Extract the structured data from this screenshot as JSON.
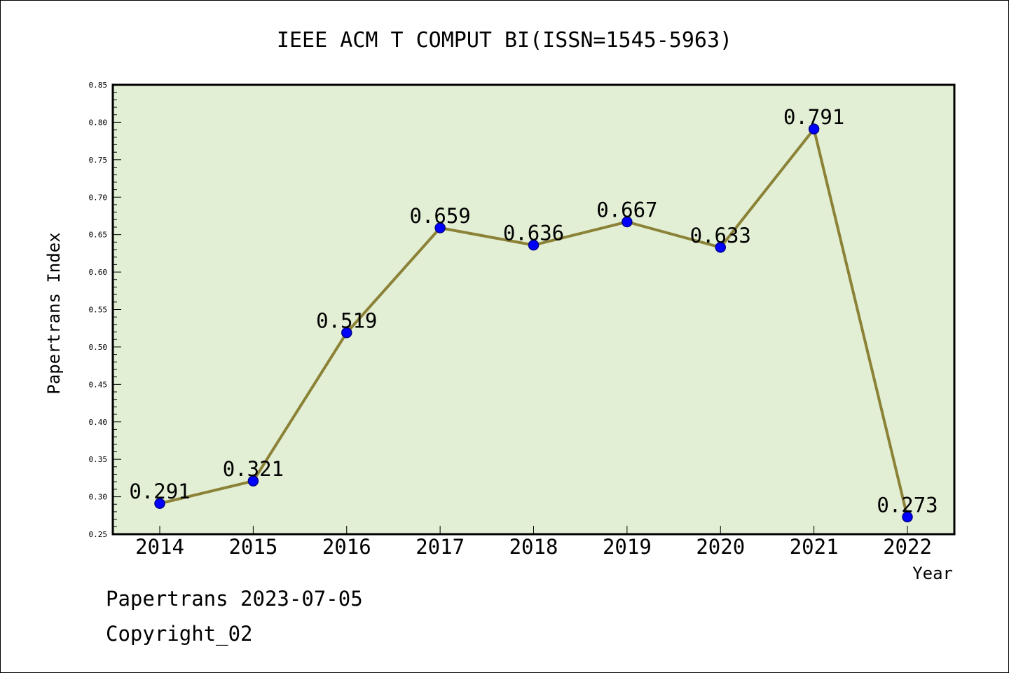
{
  "chart_data": {
    "type": "line",
    "title": "IEEE ACM T COMPUT BI(ISSN=1545-5963)",
    "xlabel": "Year",
    "ylabel": "Papertrans Index",
    "categories": [
      "2014",
      "2015",
      "2016",
      "2017",
      "2018",
      "2019",
      "2020",
      "2021",
      "2022"
    ],
    "values": [
      0.291,
      0.321,
      0.519,
      0.659,
      0.636,
      0.667,
      0.633,
      0.791,
      0.273
    ],
    "data_labels": [
      "0.291",
      "0.321",
      "0.519",
      "0.659",
      "0.636",
      "0.667",
      "0.633",
      "0.791",
      "0.273"
    ],
    "ylim": [
      0.25,
      0.85
    ],
    "yticks": [
      "0.25",
      "0.30",
      "0.35",
      "0.40",
      "0.45",
      "0.50",
      "0.55",
      "0.60",
      "0.65",
      "0.70",
      "0.75",
      "0.80",
      "0.85"
    ],
    "grid": false,
    "colors": {
      "plot_background": "#e2efd4",
      "line": "#8b8237",
      "marker": "#0000ff",
      "marker_edge": "#00008b",
      "axes": "#000000"
    }
  },
  "footer": {
    "line1": "Papertrans 2023-07-05",
    "line2": "Copyright_02"
  }
}
